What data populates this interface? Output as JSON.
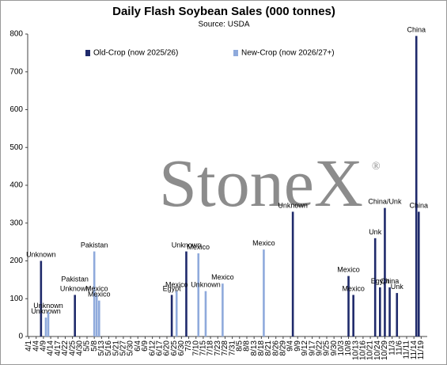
{
  "chart_data": {
    "type": "bar",
    "title": "Daily Flash Soybean Sales (000 tonnes)",
    "subtitle": "Source: USDA",
    "watermark": {
      "text": "StoneX",
      "mark": "®"
    },
    "ylim": [
      0,
      800
    ],
    "yticks": [
      0,
      100,
      200,
      300,
      400,
      500,
      600,
      700,
      800
    ],
    "grid": false,
    "legend": "top",
    "categories": [
      "4/1",
      null,
      null,
      "4/4",
      null,
      null,
      "4/9",
      null,
      null,
      "4/14",
      null,
      null,
      "4/17",
      null,
      null,
      "4/22",
      null,
      null,
      "4/25",
      null,
      null,
      "4/30",
      null,
      null,
      "5/5",
      null,
      null,
      "5/8",
      null,
      null,
      "5/13",
      null,
      null,
      "5/16",
      null,
      null,
      "5/21",
      null,
      null,
      "5/27",
      null,
      null,
      "5/30",
      null,
      null,
      "6/4",
      null,
      null,
      "6/9",
      null,
      null,
      "6/12",
      null,
      null,
      "6/17",
      null,
      null,
      "6/20",
      null,
      null,
      "6/25",
      null,
      null,
      "6/30",
      null,
      null,
      "7/3",
      null,
      null,
      "7/10",
      null,
      null,
      "7/15",
      null,
      null,
      "7/18",
      null,
      null,
      "7/23",
      null,
      null,
      "7/28",
      null,
      null,
      "7/31",
      null,
      null,
      "8/5",
      null,
      null,
      "8/8",
      null,
      null,
      "8/13",
      null,
      null,
      "8/18",
      null,
      null,
      "8/21",
      null,
      null,
      "8/26",
      null,
      null,
      "8/29",
      null,
      null,
      "9/4",
      null,
      null,
      "9/9",
      null,
      null,
      "9/12",
      null,
      null,
      "9/17",
      null,
      null,
      "9/22",
      null,
      null,
      "9/25",
      null,
      null,
      "9/30",
      null,
      null,
      "10/3",
      null,
      null,
      "10/8",
      null,
      null,
      "10/13",
      null,
      null,
      "10/16",
      null,
      null,
      "10/21",
      null,
      null,
      "10/24",
      null,
      null,
      "10/29",
      null,
      null,
      "11/3",
      null,
      null,
      "11/6",
      null,
      null,
      "11/11",
      null,
      null,
      "11/14",
      null,
      null,
      "11/19",
      null,
      null
    ],
    "series": [
      {
        "name": "Old-Crop (now 2025/26)",
        "color": "#1f2a6b",
        "values": [
          null,
          null,
          null,
          null,
          null,
          200,
          null,
          null,
          null,
          null,
          null,
          null,
          null,
          null,
          null,
          null,
          null,
          null,
          null,
          110,
          null,
          null,
          null,
          null,
          null,
          null,
          null,
          null,
          null,
          null,
          null,
          null,
          null,
          null,
          null,
          null,
          null,
          null,
          null,
          null,
          null,
          null,
          null,
          null,
          null,
          null,
          null,
          null,
          null,
          null,
          null,
          null,
          null,
          null,
          null,
          null,
          null,
          null,
          null,
          110,
          null,
          null,
          null,
          null,
          null,
          225,
          null,
          null,
          null,
          null,
          null,
          null,
          null,
          null,
          null,
          null,
          null,
          null,
          null,
          null,
          null,
          null,
          null,
          null,
          null,
          null,
          null,
          null,
          null,
          null,
          null,
          null,
          null,
          null,
          null,
          null,
          null,
          null,
          null,
          null,
          null,
          null,
          null,
          null,
          null,
          null,
          null,
          null,
          null,
          330,
          null,
          null,
          null,
          null,
          null,
          null,
          null,
          null,
          null,
          null,
          null,
          null,
          null,
          null,
          null,
          null,
          null,
          null,
          null,
          null,
          null,
          null,
          160,
          null,
          110,
          null,
          null,
          null,
          null,
          null,
          null,
          null,
          null,
          260,
          null,
          130,
          null,
          340,
          null,
          130,
          null,
          null,
          115,
          null,
          null,
          null,
          null,
          null,
          null,
          null,
          795,
          330,
          null,
          null,
          null
        ],
        "labels": [
          null,
          null,
          null,
          null,
          null,
          "Unknown",
          null,
          null,
          null,
          null,
          null,
          null,
          null,
          null,
          null,
          null,
          null,
          null,
          null,
          [
            "Pakistan",
            "Unknown"
          ],
          null,
          null,
          null,
          null,
          null,
          null,
          null,
          null,
          null,
          null,
          null,
          null,
          null,
          null,
          null,
          null,
          null,
          null,
          null,
          null,
          null,
          null,
          null,
          null,
          null,
          null,
          null,
          null,
          null,
          null,
          null,
          null,
          null,
          null,
          null,
          null,
          null,
          null,
          null,
          "Egypt",
          null,
          null,
          null,
          null,
          null,
          "Unknown",
          null,
          null,
          null,
          null,
          null,
          null,
          null,
          null,
          null,
          null,
          null,
          null,
          null,
          null,
          null,
          null,
          null,
          null,
          null,
          null,
          null,
          null,
          null,
          null,
          null,
          null,
          null,
          null,
          null,
          null,
          null,
          null,
          null,
          null,
          null,
          null,
          null,
          null,
          null,
          null,
          null,
          null,
          null,
          "Unknown",
          null,
          null,
          null,
          null,
          null,
          null,
          null,
          null,
          null,
          null,
          null,
          null,
          null,
          null,
          null,
          null,
          null,
          null,
          null,
          null,
          null,
          null,
          "Mexico",
          null,
          "Mexico",
          null,
          null,
          null,
          null,
          null,
          null,
          null,
          null,
          "Unk",
          null,
          "Egypt",
          null,
          "China/Unk",
          null,
          "China",
          null,
          null,
          "Unk",
          null,
          null,
          null,
          null,
          null,
          null,
          null,
          "China",
          "China",
          null,
          null,
          null
        ]
      },
      {
        "name": "New-Crop (now 2026/27+)",
        "color": "#8faadc",
        "values": [
          null,
          null,
          null,
          null,
          null,
          null,
          null,
          50,
          65,
          null,
          null,
          null,
          null,
          null,
          null,
          null,
          null,
          null,
          null,
          null,
          null,
          null,
          null,
          null,
          null,
          null,
          null,
          225,
          110,
          95,
          null,
          null,
          null,
          null,
          null,
          null,
          null,
          null,
          null,
          null,
          null,
          null,
          null,
          null,
          null,
          null,
          null,
          null,
          null,
          null,
          null,
          null,
          null,
          null,
          null,
          null,
          null,
          null,
          null,
          null,
          null,
          120,
          null,
          null,
          null,
          null,
          null,
          null,
          null,
          null,
          220,
          null,
          null,
          120,
          null,
          null,
          null,
          null,
          null,
          null,
          140,
          null,
          null,
          null,
          null,
          null,
          null,
          null,
          null,
          null,
          null,
          null,
          null,
          null,
          null,
          null,
          null,
          230,
          null,
          null,
          null,
          null,
          null,
          null,
          null,
          null,
          null,
          null,
          null,
          null,
          null,
          null,
          null,
          null,
          null,
          null,
          null,
          null,
          null,
          null,
          null,
          null,
          null,
          null,
          null,
          null,
          null,
          null,
          null,
          null,
          null,
          null,
          null,
          null,
          null,
          null,
          null,
          null,
          null,
          null,
          null,
          null,
          null,
          null,
          null,
          null,
          null,
          null,
          null,
          null,
          null,
          null,
          null,
          null,
          null,
          null,
          null,
          null,
          null,
          null,
          null,
          null,
          null,
          null,
          null
        ],
        "labels": [
          null,
          null,
          null,
          null,
          null,
          null,
          null,
          "Unknown",
          "Unknown",
          null,
          null,
          null,
          null,
          null,
          null,
          null,
          null,
          null,
          null,
          null,
          null,
          null,
          null,
          null,
          null,
          null,
          null,
          "Pakistan",
          "Mexico",
          "Mexico",
          null,
          null,
          null,
          null,
          null,
          null,
          null,
          null,
          null,
          null,
          null,
          null,
          null,
          null,
          null,
          null,
          null,
          null,
          null,
          null,
          null,
          null,
          null,
          null,
          null,
          null,
          null,
          null,
          null,
          null,
          null,
          "Mexico",
          null,
          null,
          null,
          null,
          null,
          null,
          null,
          null,
          "Mexico",
          null,
          null,
          "Unknown",
          null,
          null,
          null,
          null,
          null,
          null,
          "Mexico",
          null,
          null,
          null,
          null,
          null,
          null,
          null,
          null,
          null,
          null,
          null,
          null,
          null,
          null,
          null,
          null,
          "Mexico",
          null,
          null,
          null,
          null,
          null,
          null,
          null,
          null,
          null,
          null,
          null,
          null,
          null,
          null,
          null,
          null,
          null,
          null,
          null,
          null,
          null,
          null,
          null,
          null,
          null,
          null,
          null,
          null,
          null,
          null,
          null,
          null,
          null,
          null,
          null,
          null,
          null,
          null,
          null,
          null,
          null,
          null,
          null,
          null,
          null,
          null,
          null,
          null,
          null,
          null,
          null,
          null,
          null,
          null,
          null,
          null,
          null,
          null,
          null,
          null,
          null,
          null,
          null,
          null,
          null,
          null,
          null
        ]
      }
    ]
  }
}
